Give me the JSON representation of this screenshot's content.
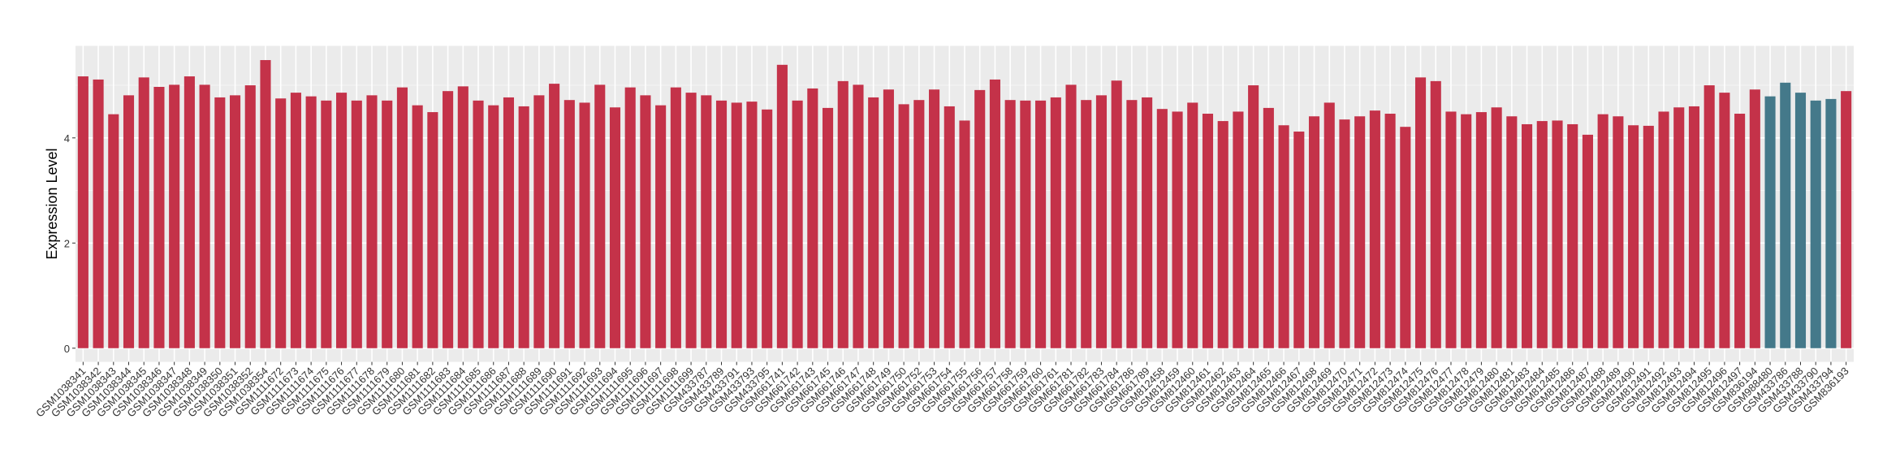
{
  "chart_data": {
    "type": "bar",
    "title": "",
    "xlabel": "",
    "ylabel": "Expression Level",
    "ylim": [
      -0.26,
      5.75
    ],
    "yticks": [
      0,
      2,
      4
    ],
    "grid": true,
    "legend": "none",
    "colors": {
      "group_a": "#C43249",
      "group_b": "#44798A",
      "panel_background": "#EBEBEB",
      "grid": "#FFFFFF"
    },
    "categories": [
      "GSM1038341",
      "GSM1038342",
      "GSM1038343",
      "GSM1038344",
      "GSM1038345",
      "GSM1038346",
      "GSM1038347",
      "GSM1038348",
      "GSM1038349",
      "GSM1038350",
      "GSM1038351",
      "GSM1038352",
      "GSM1038354",
      "GSM1111672",
      "GSM1111673",
      "GSM1111674",
      "GSM1111675",
      "GSM1111676",
      "GSM1111677",
      "GSM1111678",
      "GSM1111679",
      "GSM1111680",
      "GSM1111681",
      "GSM1111682",
      "GSM1111683",
      "GSM1111684",
      "GSM1111685",
      "GSM1111686",
      "GSM1111687",
      "GSM1111688",
      "GSM1111689",
      "GSM1111690",
      "GSM1111691",
      "GSM1111692",
      "GSM1111693",
      "GSM1111694",
      "GSM1111695",
      "GSM1111696",
      "GSM1111697",
      "GSM1111698",
      "GSM1111699",
      "GSM433787",
      "GSM433789",
      "GSM433791",
      "GSM433793",
      "GSM433795",
      "GSM661741",
      "GSM661742",
      "GSM661743",
      "GSM661745",
      "GSM661746",
      "GSM661747",
      "GSM661748",
      "GSM661749",
      "GSM661750",
      "GSM661752",
      "GSM661753",
      "GSM661754",
      "GSM661755",
      "GSM661756",
      "GSM661757",
      "GSM661758",
      "GSM661759",
      "GSM661760",
      "GSM661761",
      "GSM661781",
      "GSM661782",
      "GSM661783",
      "GSM661784",
      "GSM661786",
      "GSM661789",
      "GSM812458",
      "GSM812459",
      "GSM812460",
      "GSM812461",
      "GSM812462",
      "GSM812463",
      "GSM812464",
      "GSM812465",
      "GSM812466",
      "GSM812467",
      "GSM812468",
      "GSM812469",
      "GSM812470",
      "GSM812471",
      "GSM812472",
      "GSM812473",
      "GSM812474",
      "GSM812475",
      "GSM812476",
      "GSM812477",
      "GSM812478",
      "GSM812479",
      "GSM812480",
      "GSM812481",
      "GSM812483",
      "GSM812484",
      "GSM812485",
      "GSM812486",
      "GSM812487",
      "GSM812488",
      "GSM812489",
      "GSM812490",
      "GSM812491",
      "GSM812492",
      "GSM812493",
      "GSM812494",
      "GSM812495",
      "GSM812496",
      "GSM812497",
      "GSM836194",
      "GSM988480",
      "GSM433786",
      "GSM433788",
      "GSM433790",
      "GSM433794",
      "GSM836193"
    ],
    "values": [
      5.17,
      5.11,
      4.45,
      4.81,
      5.15,
      4.97,
      5.01,
      5.17,
      5.01,
      4.77,
      4.81,
      5.0,
      5.48,
      4.75,
      4.86,
      4.79,
      4.71,
      4.86,
      4.71,
      4.81,
      4.71,
      4.96,
      4.62,
      4.49,
      4.89,
      4.98,
      4.71,
      4.62,
      4.77,
      4.6,
      4.81,
      5.03,
      4.72,
      4.67,
      5.01,
      4.58,
      4.96,
      4.81,
      4.62,
      4.96,
      4.86,
      4.81,
      4.71,
      4.67,
      4.69,
      4.54,
      5.39,
      4.71,
      4.94,
      4.57,
      5.08,
      5.01,
      4.77,
      4.92,
      4.64,
      4.72,
      4.92,
      4.6,
      4.33,
      4.91,
      5.11,
      4.72,
      4.71,
      4.71,
      4.77,
      5.01,
      4.72,
      4.81,
      5.09,
      4.72,
      4.77,
      4.55,
      4.5,
      4.67,
      4.46,
      4.32,
      4.5,
      5.0,
      4.57,
      4.24,
      4.12,
      4.41,
      4.67,
      4.35,
      4.41,
      4.52,
      4.46,
      4.21,
      5.15,
      5.08,
      4.5,
      4.45,
      4.49,
      4.58,
      4.41,
      4.26,
      4.32,
      4.33,
      4.26,
      4.06,
      4.45,
      4.41,
      4.24,
      4.23,
      4.5,
      4.58,
      4.6,
      5.0,
      4.86,
      4.46,
      4.92,
      4.79,
      5.05,
      4.86,
      4.71,
      4.74,
      4.89
    ],
    "groups": [
      "a",
      "a",
      "a",
      "a",
      "a",
      "a",
      "a",
      "a",
      "a",
      "a",
      "a",
      "a",
      "a",
      "a",
      "a",
      "a",
      "a",
      "a",
      "a",
      "a",
      "a",
      "a",
      "a",
      "a",
      "a",
      "a",
      "a",
      "a",
      "a",
      "a",
      "a",
      "a",
      "a",
      "a",
      "a",
      "a",
      "a",
      "a",
      "a",
      "a",
      "a",
      "a",
      "a",
      "a",
      "a",
      "a",
      "a",
      "a",
      "a",
      "a",
      "a",
      "a",
      "a",
      "a",
      "a",
      "a",
      "a",
      "a",
      "a",
      "a",
      "a",
      "a",
      "a",
      "a",
      "a",
      "a",
      "a",
      "a",
      "a",
      "a",
      "a",
      "a",
      "a",
      "a",
      "a",
      "a",
      "a",
      "a",
      "a",
      "a",
      "a",
      "a",
      "a",
      "a",
      "a",
      "a",
      "a",
      "a",
      "a",
      "a",
      "a",
      "a",
      "a",
      "a",
      "a",
      "a",
      "a",
      "a",
      "a",
      "a",
      "a",
      "a",
      "a",
      "a",
      "a",
      "a",
      "a",
      "a",
      "a",
      "a",
      "a",
      "b",
      "b",
      "b",
      "b",
      "b"
    ]
  }
}
